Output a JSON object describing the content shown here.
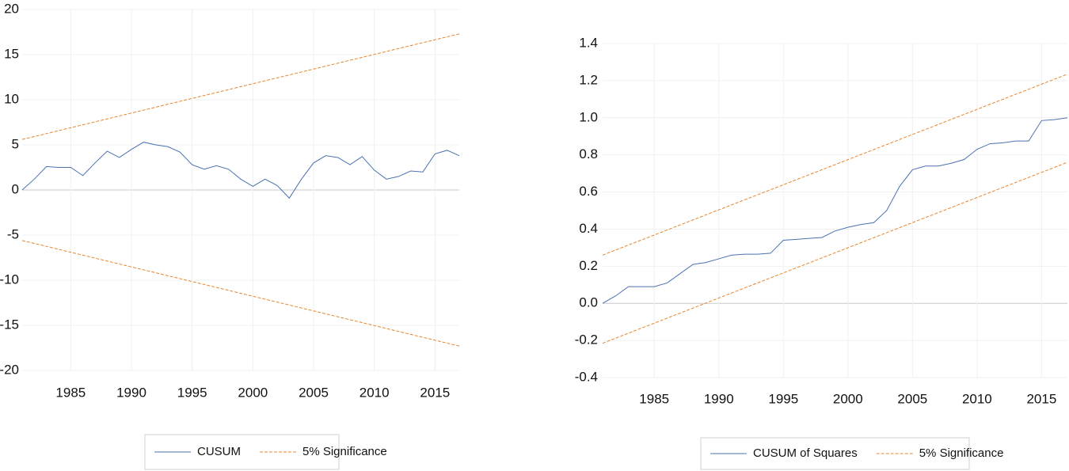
{
  "chart_data": [
    {
      "type": "line",
      "x": [
        1981,
        1982,
        1983,
        1984,
        1985,
        1986,
        1987,
        1988,
        1989,
        1990,
        1991,
        1992,
        1993,
        1994,
        1995,
        1996,
        1997,
        1998,
        1999,
        2000,
        2001,
        2002,
        2003,
        2004,
        2005,
        2006,
        2007,
        2008,
        2009,
        2010,
        2011,
        2012,
        2013,
        2014,
        2015,
        2016,
        2017
      ],
      "xlim": [
        1981,
        2017
      ],
      "xticks": [
        1985,
        1990,
        1995,
        2000,
        2005,
        2010,
        2015
      ],
      "ylim": [
        -20,
        20
      ],
      "yticks": [
        20,
        15,
        10,
        5,
        0,
        -5,
        -10,
        -15,
        -20
      ],
      "grid": true,
      "series": [
        {
          "name": "CUSUM",
          "color": "#4a72b0",
          "values": [
            0,
            1.2,
            2.6,
            2.5,
            2.5,
            1.6,
            3.0,
            4.3,
            3.6,
            4.5,
            5.3,
            5.0,
            4.8,
            4.2,
            2.8,
            2.3,
            2.7,
            2.3,
            1.2,
            0.4,
            1.2,
            0.5,
            -0.9,
            1.2,
            3.0,
            3.8,
            3.6,
            2.8,
            3.7,
            2.2,
            1.2,
            1.5,
            2.1,
            2.0,
            4.0,
            4.4,
            3.8
          ]
        },
        {
          "name": "5% Significance",
          "color": "#e8862e",
          "x": [
            1981,
            2017
          ],
          "upper": [
            5.6,
            17.3
          ],
          "lower": [
            -5.6,
            -17.3
          ]
        }
      ]
    },
    {
      "type": "line",
      "x": [
        1981,
        1982,
        1983,
        1984,
        1985,
        1986,
        1987,
        1988,
        1989,
        1990,
        1991,
        1992,
        1993,
        1994,
        1995,
        1996,
        1997,
        1998,
        1999,
        2000,
        2001,
        2002,
        2003,
        2004,
        2005,
        2006,
        2007,
        2008,
        2009,
        2010,
        2011,
        2012,
        2013,
        2014,
        2015,
        2016,
        2017
      ],
      "xlim": [
        1981,
        2017
      ],
      "xticks": [
        1985,
        1990,
        1995,
        2000,
        2005,
        2010,
        2015
      ],
      "ylim": [
        -0.4,
        1.4
      ],
      "yticks": [
        1.4,
        1.2,
        {
          "value": 1,
          "label": "1.0"
        },
        0.8,
        0.6,
        0.4,
        0.2,
        {
          "value": 0,
          "label": "0.0"
        },
        -0.2,
        -0.4
      ],
      "grid": true,
      "series": [
        {
          "name": "CUSUM of Squares",
          "color": "#4a72b0",
          "values": [
            0,
            0.04,
            0.09,
            0.09,
            0.09,
            0.11,
            0.16,
            0.21,
            0.22,
            0.24,
            0.26,
            0.265,
            0.265,
            0.27,
            0.34,
            0.345,
            0.35,
            0.355,
            0.39,
            0.41,
            0.425,
            0.435,
            0.5,
            0.63,
            0.72,
            0.74,
            0.74,
            0.755,
            0.775,
            0.83,
            0.86,
            0.865,
            0.875,
            0.875,
            0.985,
            0.99,
            1.0
          ]
        },
        {
          "name": "5% Significance",
          "color": "#e8862e",
          "x": [
            1981,
            2017
          ],
          "upper": [
            0.26,
            1.235
          ],
          "lower": [
            -0.215,
            0.76
          ]
        }
      ]
    }
  ]
}
